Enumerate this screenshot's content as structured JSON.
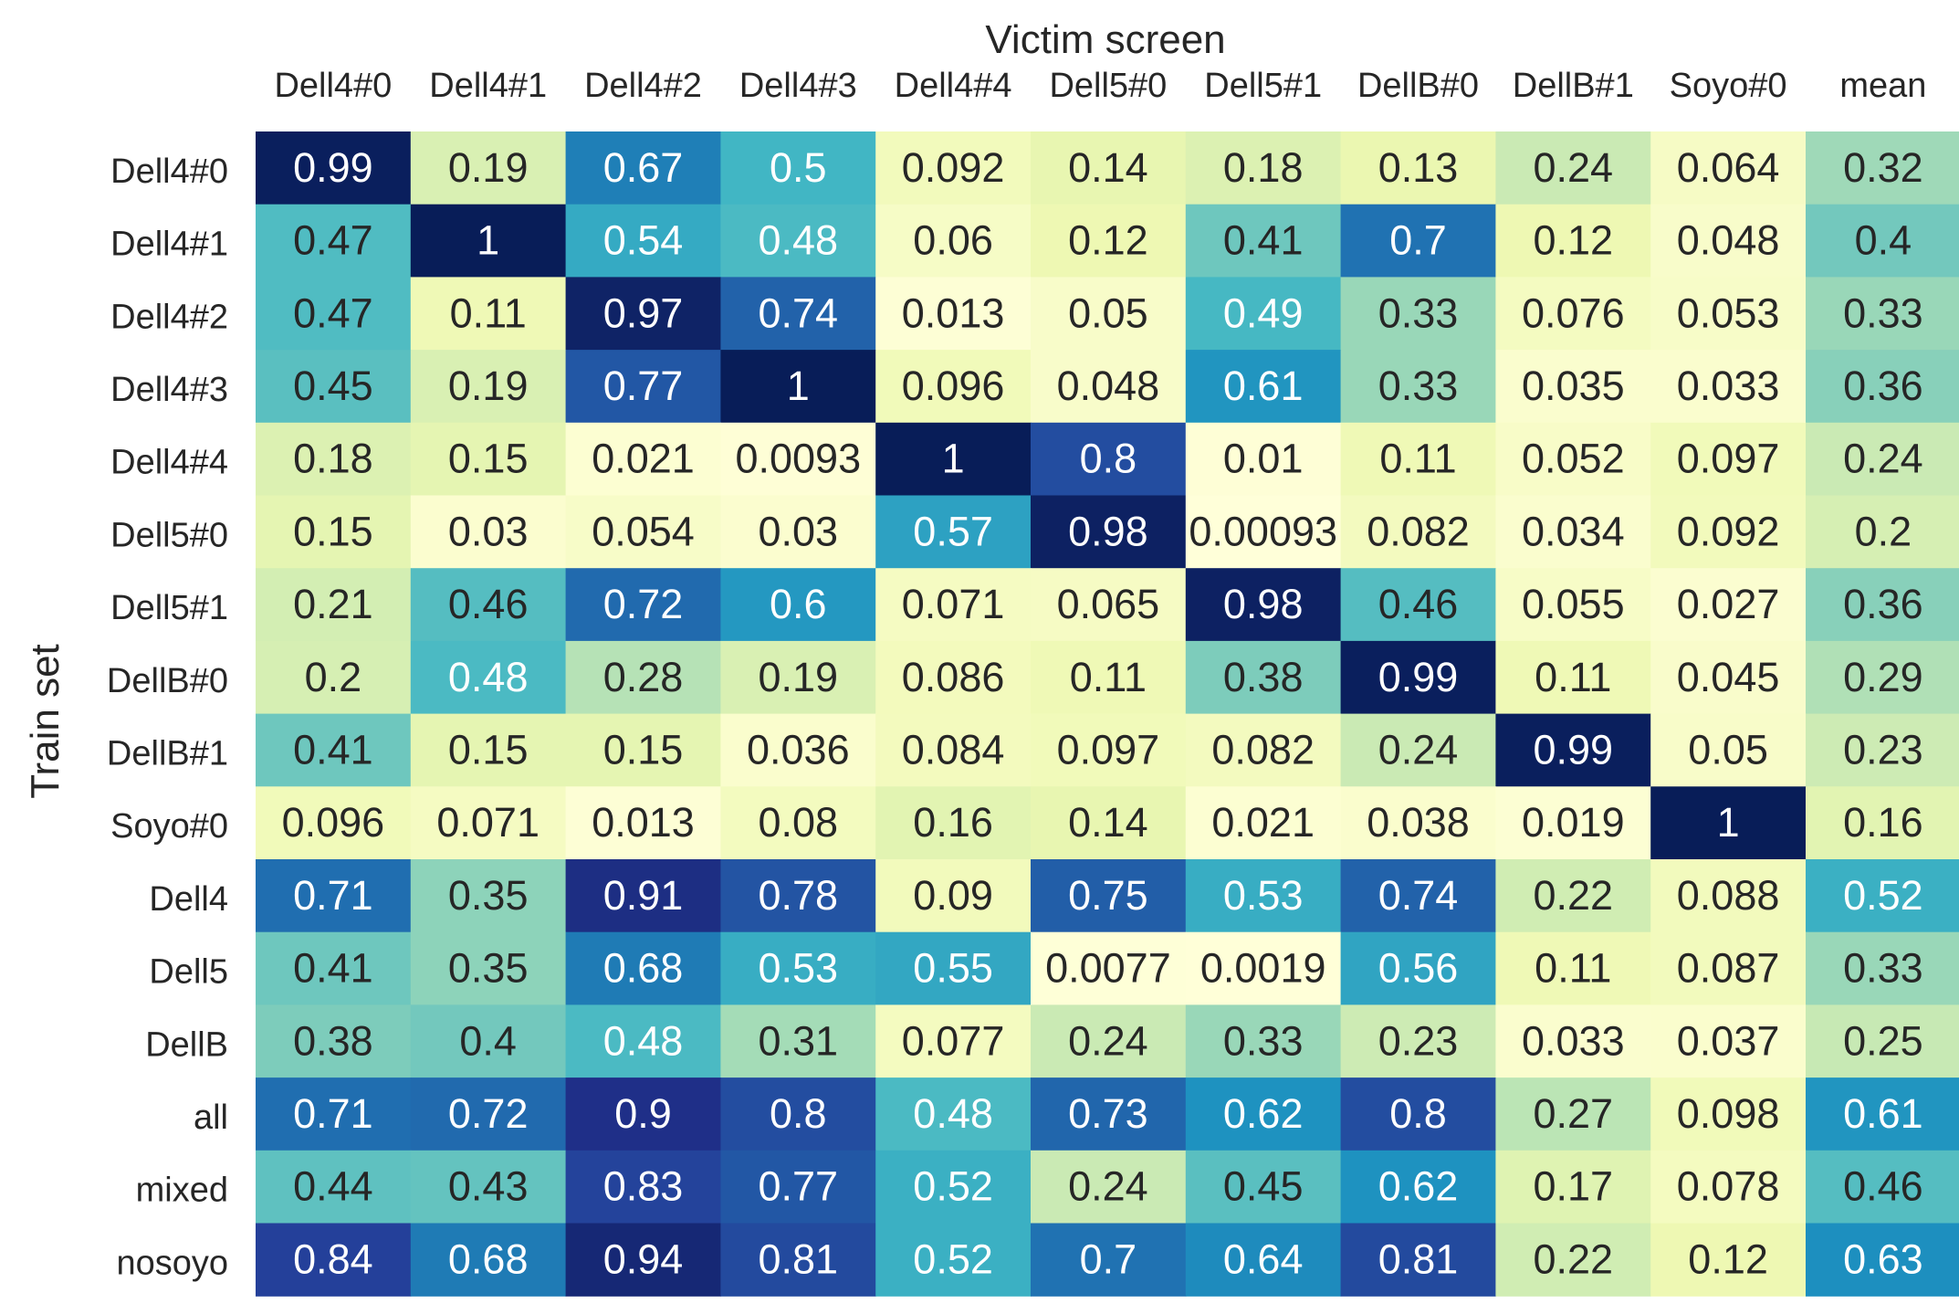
{
  "chart_data": {
    "type": "heatmap",
    "xlabel": "Victim screen",
    "ylabel": "Train set",
    "x_categories": [
      "Dell4#0",
      "Dell4#1",
      "Dell4#2",
      "Dell4#3",
      "Dell4#4",
      "Dell5#0",
      "Dell5#1",
      "DellB#0",
      "DellB#1",
      "Soyo#0",
      "mean"
    ],
    "y_categories": [
      "Dell4#0",
      "Dell4#1",
      "Dell4#2",
      "Dell4#3",
      "Dell4#4",
      "Dell5#0",
      "Dell5#1",
      "DellB#0",
      "DellB#1",
      "Soyo#0",
      "Dell4",
      "Dell5",
      "DellB",
      "all",
      "mixed",
      "nosoyo"
    ],
    "values": [
      [
        0.99,
        0.19,
        0.67,
        0.5,
        0.092,
        0.14,
        0.18,
        0.13,
        0.24,
        0.064,
        0.32
      ],
      [
        0.47,
        1,
        0.54,
        0.48,
        0.06,
        0.12,
        0.41,
        0.7,
        0.12,
        0.048,
        0.4
      ],
      [
        0.47,
        0.11,
        0.97,
        0.74,
        0.013,
        0.05,
        0.49,
        0.33,
        0.076,
        0.053,
        0.33
      ],
      [
        0.45,
        0.19,
        0.77,
        1,
        0.096,
        0.048,
        0.61,
        0.33,
        0.035,
        0.033,
        0.36
      ],
      [
        0.18,
        0.15,
        0.021,
        0.0093,
        1,
        0.8,
        0.01,
        0.11,
        0.052,
        0.097,
        0.24
      ],
      [
        0.15,
        0.03,
        0.054,
        0.03,
        0.57,
        0.98,
        0.00093,
        0.082,
        0.034,
        0.092,
        0.2
      ],
      [
        0.21,
        0.46,
        0.72,
        0.6,
        0.071,
        0.065,
        0.98,
        0.46,
        0.055,
        0.027,
        0.36
      ],
      [
        0.2,
        0.48,
        0.28,
        0.19,
        0.086,
        0.11,
        0.38,
        0.99,
        0.11,
        0.045,
        0.29
      ],
      [
        0.41,
        0.15,
        0.15,
        0.036,
        0.084,
        0.097,
        0.082,
        0.24,
        0.99,
        0.05,
        0.23
      ],
      [
        0.096,
        0.071,
        0.013,
        0.08,
        0.16,
        0.14,
        0.021,
        0.038,
        0.019,
        1,
        0.16
      ],
      [
        0.71,
        0.35,
        0.91,
        0.78,
        0.09,
        0.75,
        0.53,
        0.74,
        0.22,
        0.088,
        0.52
      ],
      [
        0.41,
        0.35,
        0.68,
        0.53,
        0.55,
        0.0077,
        0.0019,
        0.56,
        0.11,
        0.087,
        0.33
      ],
      [
        0.38,
        0.4,
        0.48,
        0.31,
        0.077,
        0.24,
        0.33,
        0.23,
        0.033,
        0.037,
        0.25
      ],
      [
        0.71,
        0.72,
        0.9,
        0.8,
        0.48,
        0.73,
        0.62,
        0.8,
        0.27,
        0.098,
        0.61
      ],
      [
        0.44,
        0.43,
        0.83,
        0.77,
        0.52,
        0.24,
        0.45,
        0.62,
        0.17,
        0.078,
        0.46
      ],
      [
        0.84,
        0.68,
        0.94,
        0.81,
        0.52,
        0.7,
        0.64,
        0.81,
        0.22,
        0.12,
        0.63
      ]
    ],
    "value_range": [
      0,
      1
    ],
    "colormap": "YlGnBu",
    "x_axis_position": "top",
    "grid": false,
    "legend": "none"
  }
}
